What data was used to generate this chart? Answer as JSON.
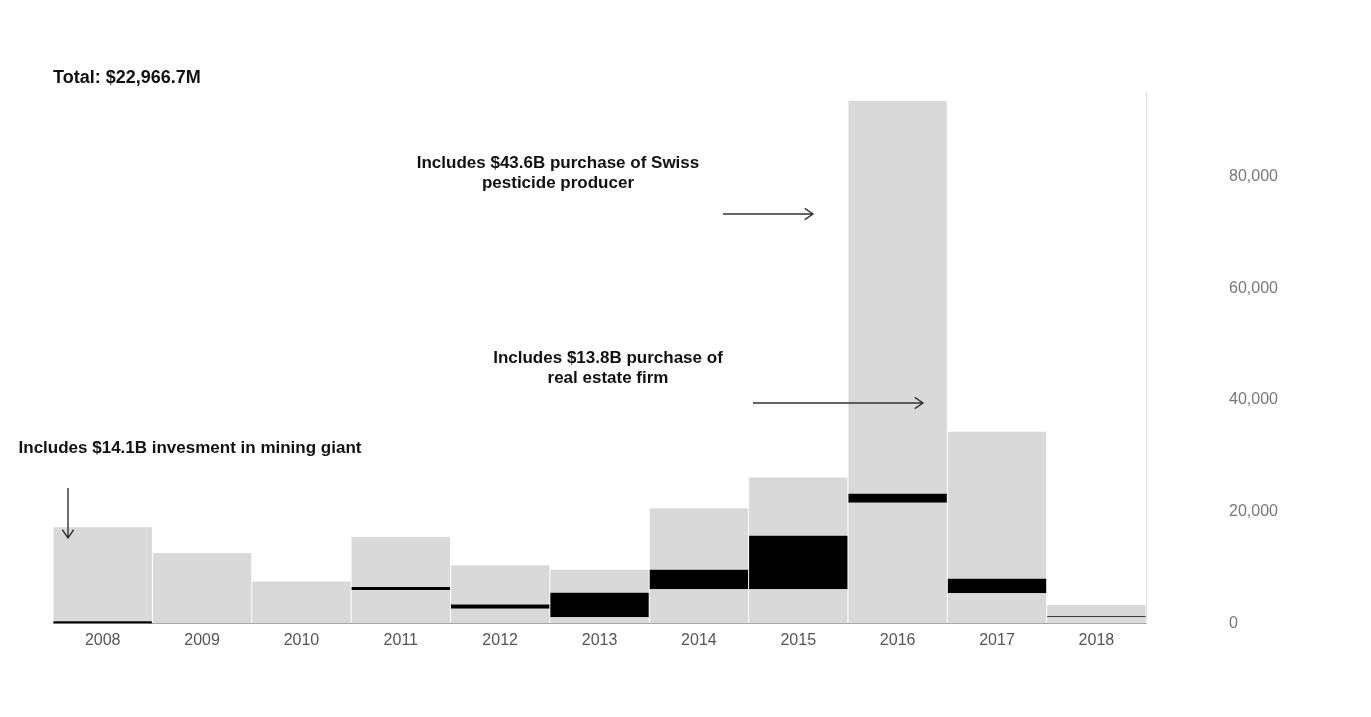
{
  "chart_data": {
    "type": "bar",
    "stacked": true,
    "title": "Total: $22,966.7M",
    "categories": [
      "2008",
      "2009",
      "2010",
      "2011",
      "2012",
      "2013",
      "2014",
      "2015",
      "2016",
      "2017",
      "2018"
    ],
    "series": [
      {
        "color": "#d9d9d9",
        "values": [
          null,
          12600,
          7500,
          6000,
          2600,
          1100,
          6100,
          6100,
          21600,
          5400,
          1100
        ]
      },
      {
        "color": "#000000",
        "values": [
          400,
          null,
          null,
          500,
          800,
          4400,
          3500,
          9600,
          1600,
          2600,
          200
        ]
      },
      {
        "color": "#d9d9d9",
        "values": [
          16800,
          null,
          null,
          9000,
          7000,
          4100,
          11000,
          10400,
          70300,
          26300,
          2000
        ]
      }
    ],
    "ylim": [
      0,
      95000
    ],
    "yticks": [
      0,
      {
        "value": 20000,
        "label": "20,000"
      },
      {
        "value": 40000,
        "label": "40,000"
      },
      {
        "value": 60000,
        "label": "60,000"
      },
      {
        "value": 80000,
        "label": "80,000"
      }
    ],
    "grid": false,
    "legend": false,
    "annotations": [
      "Includes $43.6B purchase of Swiss pesticide producer",
      "Includes $13.8B purchase of real estate firm",
      "Includes $14.1B invesment in mining giant"
    ]
  }
}
